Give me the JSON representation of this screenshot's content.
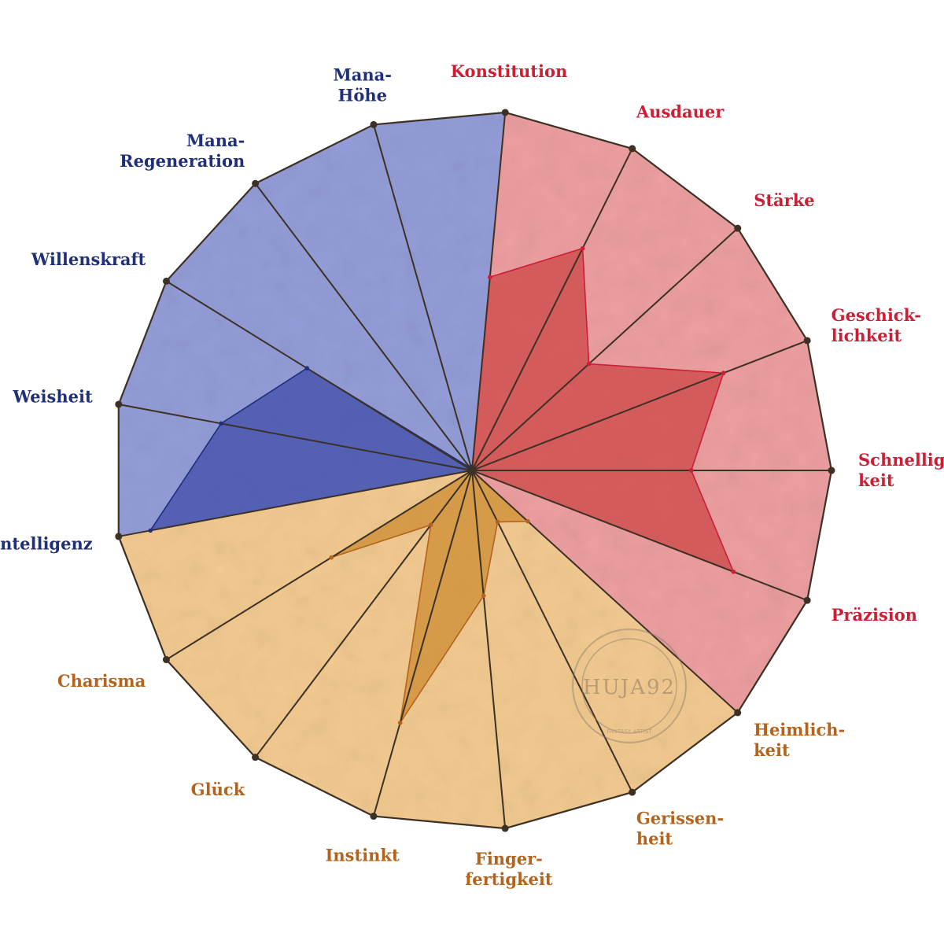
{
  "chart_data": {
    "type": "radar",
    "title": "",
    "rmax": 10,
    "colors": {
      "blue": "#1f2f7a",
      "red": "#cc1f35",
      "orange": "#b4631d",
      "blue_fill": "#8f98d6",
      "red_fill": "#ec9a9c",
      "orange_fill": "#f2c78b",
      "blue_dark": "#3b4aa6",
      "red_dark": "#cc4242",
      "orange_dark": "#cc8a2e",
      "frame": "#3d3126"
    },
    "axes": [
      {
        "label": "Konstitution",
        "group": "red",
        "value": 5.4
      },
      {
        "label": "Ausdauer",
        "group": "red",
        "value": 6.9
      },
      {
        "label": "Stärke",
        "group": "red",
        "value": 4.4
      },
      {
        "label": "Geschick-lichkeit",
        "group": "red",
        "value": 7.5
      },
      {
        "label": "Schnellig-keit",
        "group": "red",
        "value": 6.1
      },
      {
        "label": "Präzision",
        "group": "red",
        "value": 7.8
      },
      {
        "label": "Heimlich-keit",
        "group": "orange",
        "value": 2.1
      },
      {
        "label": "Gerissen-heit",
        "group": "orange",
        "value": 1.6
      },
      {
        "label": "Finger-fertigkeit",
        "group": "orange",
        "value": 3.5
      },
      {
        "label": "Instinkt",
        "group": "orange",
        "value": 7.3
      },
      {
        "label": "Glück",
        "group": "orange",
        "value": 1.9
      },
      {
        "label": "Charisma",
        "group": "orange",
        "value": 4.6
      },
      {
        "label": "Intelligenz",
        "group": "blue",
        "value": 9.1
      },
      {
        "label": "Weisheit",
        "group": "blue",
        "value": 7.1
      },
      {
        "label": "Willenskraft",
        "group": "blue",
        "value": 5.4
      },
      {
        "label": "Mana-Regeneration",
        "group": "blue",
        "value": 0.1
      },
      {
        "label": "Mana-Höhe",
        "group": "blue",
        "value": 0.1
      }
    ],
    "watermark": {
      "text": "HUJA92",
      "subtext": "FANTASY ARTIST"
    }
  }
}
